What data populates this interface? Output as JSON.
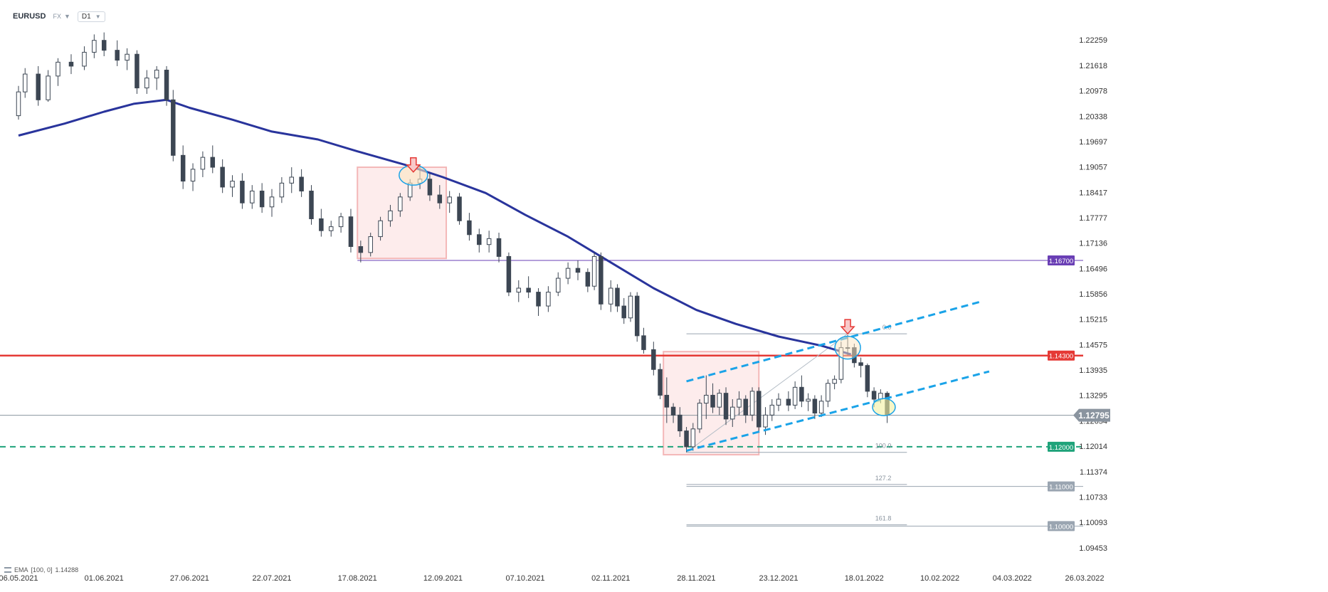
{
  "header": {
    "symbol": "EURUSD",
    "asset_class": "FX",
    "timeframe": "D1"
  },
  "indicator": {
    "label": "EMA",
    "params": "[100, 0]",
    "value": "1.14288"
  },
  "colors": {
    "ema": "#29349c",
    "resistance": "#e53935",
    "support_green": "#1fa37a",
    "channel": "#1aa3e8",
    "level_purple": "#6a3fb5",
    "level_grey": "#9aa5b1",
    "bull": "#ffffff",
    "bear": "#3c4653",
    "box": "#f4b7b8"
  },
  "chart_data": {
    "type": "candlestick",
    "instrument": "EURUSD",
    "timeframe": "D1",
    "ylim": [
      1.0945,
      1.2255
    ],
    "y_ticks": [
      "1.22259",
      "1.21618",
      "1.20978",
      "1.20338",
      "1.19697",
      "1.19057",
      "1.18417",
      "1.17777",
      "1.17136",
      "1.16496",
      "1.15856",
      "1.15215",
      "1.14575",
      "1.13935",
      "1.13295",
      "1.12654",
      "1.12014",
      "1.11374",
      "1.10733",
      "1.10093",
      "1.09453"
    ],
    "x_start": "2021-05-06",
    "x_end": "2022-03-26",
    "x_ticks": [
      {
        "date": "2021-05-06",
        "label": "06.05.2021"
      },
      {
        "date": "2021-06-01",
        "label": "01.06.2021"
      },
      {
        "date": "2021-06-27",
        "label": "27.06.2021"
      },
      {
        "date": "2021-07-22",
        "label": "22.07.2021"
      },
      {
        "date": "2021-08-17",
        "label": "17.08.2021"
      },
      {
        "date": "2021-09-12",
        "label": "12.09.2021"
      },
      {
        "date": "2021-10-07",
        "label": "07.10.2021"
      },
      {
        "date": "2021-11-02",
        "label": "02.11.2021"
      },
      {
        "date": "2021-11-28",
        "label": "28.11.2021"
      },
      {
        "date": "2021-12-23",
        "label": "23.12.2021"
      },
      {
        "date": "2022-01-18",
        "label": "18.01.2022"
      },
      {
        "date": "2022-02-10",
        "label": "10.02.2022"
      },
      {
        "date": "2022-03-04",
        "label": "04.03.2022"
      },
      {
        "date": "2022-03-26",
        "label": "26.03.2022"
      }
    ],
    "current_price": "1.12795",
    "levels": [
      {
        "label": "1.16700",
        "value": 1.167,
        "style": "purple"
      },
      {
        "label": "1.14300",
        "value": 1.143,
        "style": "red"
      },
      {
        "label": "1.12000",
        "value": 1.12,
        "style": "green-dashed"
      },
      {
        "label": "1.11000",
        "value": 1.11,
        "style": "grey"
      },
      {
        "label": "1.10000",
        "value": 1.1,
        "style": "grey"
      }
    ],
    "fib_labels": [
      {
        "label": "0.0",
        "value": 1.1485
      },
      {
        "label": "100.0",
        "value": 1.1186
      },
      {
        "label": "127.2",
        "value": 1.1105
      },
      {
        "label": "161.8",
        "value": 1.1003
      }
    ],
    "ema": [
      [
        "2021-05-06",
        1.1985
      ],
      [
        "2021-05-20",
        1.2015
      ],
      [
        "2021-06-01",
        1.2045
      ],
      [
        "2021-06-10",
        1.2065
      ],
      [
        "2021-06-20",
        1.2075
      ],
      [
        "2021-06-27",
        1.2055
      ],
      [
        "2021-07-10",
        1.2025
      ],
      [
        "2021-07-22",
        1.1995
      ],
      [
        "2021-08-05",
        1.1975
      ],
      [
        "2021-08-17",
        1.1945
      ],
      [
        "2021-09-01",
        1.191
      ],
      [
        "2021-09-12",
        1.188
      ],
      [
        "2021-09-25",
        1.184
      ],
      [
        "2021-10-07",
        1.1785
      ],
      [
        "2021-10-20",
        1.173
      ],
      [
        "2021-11-02",
        1.1665
      ],
      [
        "2021-11-15",
        1.16
      ],
      [
        "2021-11-28",
        1.1545
      ],
      [
        "2021-12-10",
        1.151
      ],
      [
        "2021-12-23",
        1.1478
      ],
      [
        "2022-01-05",
        1.1455
      ],
      [
        "2022-01-14",
        1.1433
      ]
    ],
    "candles": [
      [
        "2021-05-06",
        1.2035,
        1.211,
        1.2025,
        1.2095
      ],
      [
        "2021-05-08",
        1.2095,
        1.2155,
        1.208,
        1.214
      ],
      [
        "2021-05-12",
        1.214,
        1.216,
        1.206,
        1.2075
      ],
      [
        "2021-05-15",
        1.2075,
        1.215,
        1.207,
        1.2135
      ],
      [
        "2021-05-18",
        1.2135,
        1.218,
        1.211,
        1.217
      ],
      [
        "2021-05-22",
        1.217,
        1.219,
        1.214,
        1.216
      ],
      [
        "2021-05-26",
        1.216,
        1.221,
        1.215,
        1.2195
      ],
      [
        "2021-05-29",
        1.2195,
        1.224,
        1.218,
        1.2225
      ],
      [
        "2021-06-01",
        1.2225,
        1.2245,
        1.2185,
        1.22
      ],
      [
        "2021-06-05",
        1.22,
        1.2225,
        1.216,
        1.2175
      ],
      [
        "2021-06-08",
        1.2175,
        1.2205,
        1.215,
        1.219
      ],
      [
        "2021-06-11",
        1.219,
        1.22,
        1.209,
        1.2105
      ],
      [
        "2021-06-14",
        1.2105,
        1.215,
        1.209,
        1.213
      ],
      [
        "2021-06-17",
        1.213,
        1.216,
        1.21,
        1.215
      ],
      [
        "2021-06-20",
        1.215,
        1.216,
        1.206,
        1.2075
      ],
      [
        "2021-06-22",
        1.2075,
        1.21,
        1.192,
        1.1935
      ],
      [
        "2021-06-25",
        1.1935,
        1.196,
        1.185,
        1.187
      ],
      [
        "2021-06-28",
        1.187,
        1.1915,
        1.1845,
        1.19
      ],
      [
        "2021-07-01",
        1.19,
        1.1945,
        1.188,
        1.193
      ],
      [
        "2021-07-04",
        1.193,
        1.196,
        1.189,
        1.1905
      ],
      [
        "2021-07-07",
        1.1905,
        1.1925,
        1.184,
        1.1855
      ],
      [
        "2021-07-10",
        1.1855,
        1.1885,
        1.183,
        1.187
      ],
      [
        "2021-07-13",
        1.187,
        1.189,
        1.18,
        1.1815
      ],
      [
        "2021-07-16",
        1.1815,
        1.186,
        1.18,
        1.1845
      ],
      [
        "2021-07-19",
        1.1845,
        1.1865,
        1.179,
        1.1805
      ],
      [
        "2021-07-22",
        1.1805,
        1.185,
        1.178,
        1.183
      ],
      [
        "2021-07-25",
        1.183,
        1.188,
        1.1815,
        1.1865
      ],
      [
        "2021-07-28",
        1.1865,
        1.1905,
        1.184,
        1.188
      ],
      [
        "2021-07-31",
        1.188,
        1.19,
        1.183,
        1.1845
      ],
      [
        "2021-08-03",
        1.1845,
        1.186,
        1.176,
        1.1775
      ],
      [
        "2021-08-06",
        1.1775,
        1.18,
        1.173,
        1.1745
      ],
      [
        "2021-08-09",
        1.1745,
        1.177,
        1.173,
        1.1755
      ],
      [
        "2021-08-12",
        1.1755,
        1.179,
        1.174,
        1.178
      ],
      [
        "2021-08-15",
        1.178,
        1.18,
        1.169,
        1.1705
      ],
      [
        "2021-08-18",
        1.1705,
        1.172,
        1.1665,
        1.169
      ],
      [
        "2021-08-21",
        1.169,
        1.174,
        1.168,
        1.173
      ],
      [
        "2021-08-24",
        1.173,
        1.178,
        1.172,
        1.177
      ],
      [
        "2021-08-27",
        1.177,
        1.181,
        1.1755,
        1.1795
      ],
      [
        "2021-08-30",
        1.1795,
        1.184,
        1.178,
        1.183
      ],
      [
        "2021-09-02",
        1.183,
        1.1875,
        1.182,
        1.1865
      ],
      [
        "2021-09-05",
        1.1865,
        1.191,
        1.185,
        1.1875
      ],
      [
        "2021-09-08",
        1.1875,
        1.189,
        1.182,
        1.1835
      ],
      [
        "2021-09-11",
        1.1835,
        1.186,
        1.18,
        1.1815
      ],
      [
        "2021-09-14",
        1.1815,
        1.1845,
        1.179,
        1.183
      ],
      [
        "2021-09-17",
        1.183,
        1.184,
        1.176,
        1.177
      ],
      [
        "2021-09-20",
        1.177,
        1.179,
        1.172,
        1.1735
      ],
      [
        "2021-09-23",
        1.1735,
        1.175,
        1.169,
        1.171
      ],
      [
        "2021-09-26",
        1.171,
        1.1745,
        1.169,
        1.1725
      ],
      [
        "2021-09-29",
        1.1725,
        1.174,
        1.1665,
        1.168
      ],
      [
        "2021-10-02",
        1.168,
        1.169,
        1.158,
        1.159
      ],
      [
        "2021-10-05",
        1.159,
        1.162,
        1.1565,
        1.16
      ],
      [
        "2021-10-08",
        1.16,
        1.163,
        1.1575,
        1.159
      ],
      [
        "2021-10-11",
        1.159,
        1.16,
        1.153,
        1.1555
      ],
      [
        "2021-10-14",
        1.1555,
        1.1605,
        1.154,
        1.159
      ],
      [
        "2021-10-17",
        1.159,
        1.164,
        1.158,
        1.1625
      ],
      [
        "2021-10-20",
        1.1625,
        1.1665,
        1.161,
        1.165
      ],
      [
        "2021-10-23",
        1.165,
        1.167,
        1.162,
        1.164
      ],
      [
        "2021-10-26",
        1.164,
        1.165,
        1.159,
        1.1605
      ],
      [
        "2021-10-28",
        1.1605,
        1.169,
        1.1595,
        1.168
      ],
      [
        "2021-10-30",
        1.168,
        1.169,
        1.1545,
        1.156
      ],
      [
        "2021-11-02",
        1.156,
        1.162,
        1.154,
        1.16
      ],
      [
        "2021-11-04",
        1.16,
        1.161,
        1.154,
        1.1555
      ],
      [
        "2021-11-06",
        1.1555,
        1.1575,
        1.151,
        1.1525
      ],
      [
        "2021-11-08",
        1.1525,
        1.159,
        1.1515,
        1.158
      ],
      [
        "2021-11-10",
        1.158,
        1.159,
        1.1465,
        1.148
      ],
      [
        "2021-11-12",
        1.148,
        1.15,
        1.1435,
        1.1445
      ],
      [
        "2021-11-15",
        1.1445,
        1.1465,
        1.138,
        1.1395
      ],
      [
        "2021-11-17",
        1.1395,
        1.141,
        1.132,
        1.133
      ],
      [
        "2021-11-19",
        1.133,
        1.1375,
        1.126,
        1.13
      ],
      [
        "2021-11-21",
        1.13,
        1.131,
        1.126,
        1.128
      ],
      [
        "2021-11-23",
        1.128,
        1.13,
        1.1225,
        1.124
      ],
      [
        "2021-11-25",
        1.124,
        1.125,
        1.1186,
        1.12
      ],
      [
        "2021-11-27",
        1.12,
        1.126,
        1.119,
        1.1245
      ],
      [
        "2021-11-29",
        1.1245,
        1.132,
        1.1235,
        1.131
      ],
      [
        "2021-12-01",
        1.131,
        1.138,
        1.127,
        1.133
      ],
      [
        "2021-12-03",
        1.133,
        1.136,
        1.1285,
        1.13
      ],
      [
        "2021-12-05",
        1.13,
        1.1345,
        1.128,
        1.1335
      ],
      [
        "2021-12-07",
        1.1335,
        1.135,
        1.1255,
        1.127
      ],
      [
        "2021-12-09",
        1.127,
        1.132,
        1.125,
        1.13
      ],
      [
        "2021-12-11",
        1.13,
        1.134,
        1.128,
        1.132
      ],
      [
        "2021-12-13",
        1.132,
        1.133,
        1.126,
        1.128
      ],
      [
        "2021-12-15",
        1.128,
        1.135,
        1.1265,
        1.134
      ],
      [
        "2021-12-17",
        1.134,
        1.135,
        1.124,
        1.125
      ],
      [
        "2021-12-19",
        1.125,
        1.13,
        1.123,
        1.128
      ],
      [
        "2021-12-21",
        1.128,
        1.132,
        1.1265,
        1.1305
      ],
      [
        "2021-12-23",
        1.1305,
        1.1335,
        1.129,
        1.132
      ],
      [
        "2021-12-26",
        1.132,
        1.134,
        1.129,
        1.1305
      ],
      [
        "2021-12-28",
        1.1305,
        1.1365,
        1.1295,
        1.135
      ],
      [
        "2021-12-30",
        1.135,
        1.138,
        1.13,
        1.1315
      ],
      [
        "2022-01-01",
        1.1315,
        1.1335,
        1.129,
        1.132
      ],
      [
        "2022-01-03",
        1.132,
        1.133,
        1.127,
        1.1285
      ],
      [
        "2022-01-05",
        1.1285,
        1.133,
        1.1275,
        1.1315
      ],
      [
        "2022-01-07",
        1.1315,
        1.137,
        1.13,
        1.136
      ],
      [
        "2022-01-09",
        1.136,
        1.138,
        1.1345,
        1.137
      ],
      [
        "2022-01-11",
        1.137,
        1.1465,
        1.136,
        1.145
      ],
      [
        "2022-01-13",
        1.145,
        1.1482,
        1.143,
        1.145
      ],
      [
        "2022-01-15",
        1.145,
        1.146,
        1.14,
        1.1412
      ],
      [
        "2022-01-17",
        1.1412,
        1.1425,
        1.1375,
        1.1405
      ],
      [
        "2022-01-19",
        1.1405,
        1.141,
        1.1325,
        1.134
      ],
      [
        "2022-01-21",
        1.134,
        1.135,
        1.13,
        1.132
      ],
      [
        "2022-01-23",
        1.132,
        1.1345,
        1.131,
        1.1335
      ],
      [
        "2022-01-25",
        1.1335,
        1.134,
        1.126,
        1.128
      ]
    ]
  }
}
